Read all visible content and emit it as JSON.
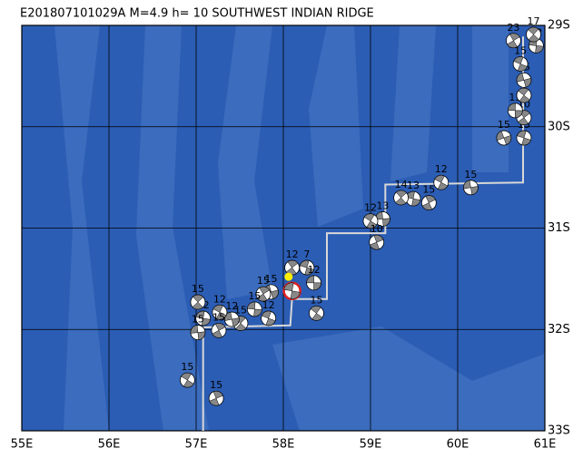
{
  "map": {
    "title": "E201807101029A  M=4.9  h= 10 SOUTHWEST INDIAN RIDGE",
    "xlim": [
      55,
      61
    ],
    "ylim": [
      -33,
      -29
    ],
    "xticks": [
      {
        "value": 55,
        "label": "55E"
      },
      {
        "value": 56,
        "label": "56E"
      },
      {
        "value": 57,
        "label": "57E"
      },
      {
        "value": 58,
        "label": "58E"
      },
      {
        "value": 59,
        "label": "59E"
      },
      {
        "value": 60,
        "label": "60E"
      },
      {
        "value": 61,
        "label": "61E"
      }
    ],
    "yticks": [
      {
        "value": -29,
        "label": "29S"
      },
      {
        "value": -30,
        "label": "30S"
      },
      {
        "value": -31,
        "label": "31S"
      },
      {
        "value": -32,
        "label": "32S"
      },
      {
        "value": -33,
        "label": "33S"
      }
    ],
    "grid": true,
    "boundary": {
      "color": "#d8d8d8",
      "lon": [
        57.08,
        57.08,
        58.08,
        58.1,
        58.5,
        58.5,
        59.17,
        59.17,
        60.75,
        60.75
      ],
      "lat": [
        -33.0,
        -31.98,
        -31.96,
        -31.7,
        -31.7,
        -31.05,
        -31.05,
        -30.57,
        -30.55,
        -29.11
      ]
    },
    "epicenter": {
      "lon": 58.06,
      "lat": -31.48,
      "color": "#ffee00"
    },
    "main_event": {
      "lon": 58.1,
      "lat": -31.62,
      "color": "#e02020"
    },
    "events": [
      {
        "lon": 60.53,
        "lat": -30.11,
        "depth": 15
      },
      {
        "lon": 60.76,
        "lat": -30.11,
        "depth": 15
      },
      {
        "lon": 60.76,
        "lat": -29.91,
        "depth": 10
      },
      {
        "lon": 60.66,
        "lat": -29.84,
        "depth": 15
      },
      {
        "lon": 60.76,
        "lat": -29.69,
        "depth": 15
      },
      {
        "lon": 60.76,
        "lat": -29.54,
        "depth": 15
      },
      {
        "lon": 60.72,
        "lat": -29.38,
        "depth": 15
      },
      {
        "lon": 60.64,
        "lat": -29.15,
        "depth": 23
      },
      {
        "lon": 60.9,
        "lat": -29.2,
        "depth": 12
      },
      {
        "lon": 60.87,
        "lat": -29.09,
        "depth": 17
      },
      {
        "lon": 60.15,
        "lat": -30.6,
        "depth": 15
      },
      {
        "lon": 59.81,
        "lat": -30.55,
        "depth": 12
      },
      {
        "lon": 59.67,
        "lat": -30.75,
        "depth": 15
      },
      {
        "lon": 59.49,
        "lat": -30.71,
        "depth": 13
      },
      {
        "lon": 59.35,
        "lat": -30.7,
        "depth": 14
      },
      {
        "lon": 59.14,
        "lat": -30.91,
        "depth": 13
      },
      {
        "lon": 59.0,
        "lat": -30.93,
        "depth": 12
      },
      {
        "lon": 59.07,
        "lat": -31.14,
        "depth": 10
      },
      {
        "lon": 58.27,
        "lat": -31.39,
        "depth": 7
      },
      {
        "lon": 58.1,
        "lat": -31.39,
        "depth": 12
      },
      {
        "lon": 58.35,
        "lat": -31.54,
        "depth": 12
      },
      {
        "lon": 58.38,
        "lat": -31.84,
        "depth": 15
      },
      {
        "lon": 57.86,
        "lat": -31.63,
        "depth": 15
      },
      {
        "lon": 57.83,
        "lat": -31.89,
        "depth": 12
      },
      {
        "lon": 57.77,
        "lat": -31.65,
        "depth": 15
      },
      {
        "lon": 57.67,
        "lat": -31.8,
        "depth": 15
      },
      {
        "lon": 57.51,
        "lat": -31.94,
        "depth": 15
      },
      {
        "lon": 57.41,
        "lat": -31.9,
        "depth": 12
      },
      {
        "lon": 57.27,
        "lat": -31.83,
        "depth": 12
      },
      {
        "lon": 57.26,
        "lat": -32.01,
        "depth": 15
      },
      {
        "lon": 57.08,
        "lat": -31.89,
        "depth": 12
      },
      {
        "lon": 57.02,
        "lat": -31.73,
        "depth": 15
      },
      {
        "lon": 57.02,
        "lat": -32.03,
        "depth": 15
      },
      {
        "lon": 56.9,
        "lat": -32.5,
        "depth": 15
      },
      {
        "lon": 57.23,
        "lat": -32.68,
        "depth": 15
      }
    ]
  }
}
